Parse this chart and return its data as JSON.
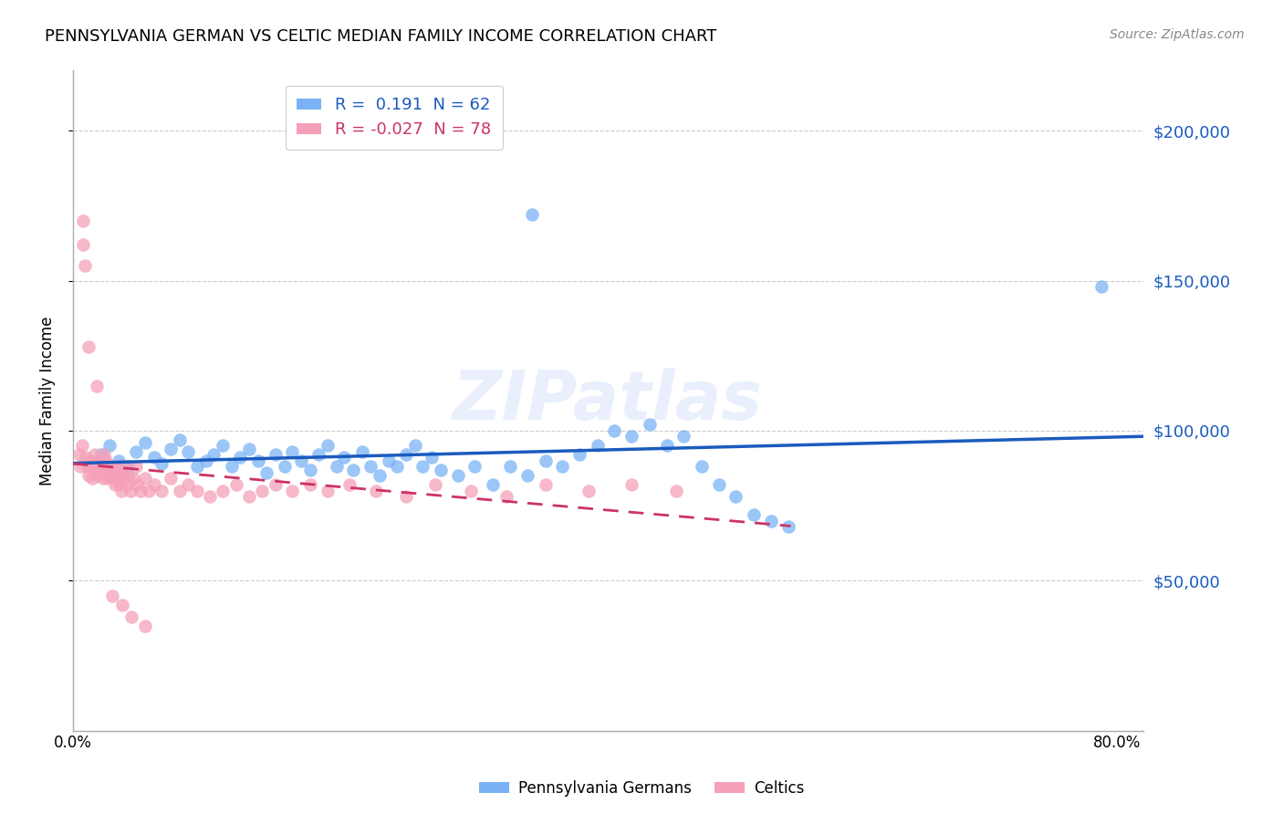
{
  "title": "PENNSYLVANIA GERMAN VS CELTIC MEDIAN FAMILY INCOME CORRELATION CHART",
  "source": "Source: ZipAtlas.com",
  "ylabel": "Median Family Income",
  "ytick_labels": [
    "$50,000",
    "$100,000",
    "$150,000",
    "$200,000"
  ],
  "ytick_values": [
    50000,
    100000,
    150000,
    200000
  ],
  "ylim": [
    0,
    220000
  ],
  "xlim": [
    0,
    0.82
  ],
  "xtick_left": "0.0%",
  "xtick_right": "80.0%",
  "legend_blue_r": "0.191",
  "legend_blue_n": "62",
  "legend_pink_r": "-0.027",
  "legend_pink_n": "78",
  "blue_color": "#7ab3f5",
  "pink_color": "#f5a0b8",
  "line_blue_color": "#1a5bbf",
  "line_pink_color": "#cc3366",
  "watermark": "ZIPatlas",
  "blue_scatter_x": [
    0.022,
    0.028,
    0.035,
    0.042,
    0.048,
    0.055,
    0.062,
    0.068,
    0.075,
    0.082,
    0.088,
    0.095,
    0.102,
    0.108,
    0.115,
    0.122,
    0.128,
    0.135,
    0.142,
    0.148,
    0.155,
    0.162,
    0.168,
    0.175,
    0.182,
    0.188,
    0.195,
    0.202,
    0.208,
    0.215,
    0.222,
    0.228,
    0.235,
    0.242,
    0.248,
    0.255,
    0.262,
    0.268,
    0.275,
    0.282,
    0.295,
    0.308,
    0.322,
    0.335,
    0.348,
    0.362,
    0.375,
    0.388,
    0.402,
    0.415,
    0.428,
    0.442,
    0.455,
    0.468,
    0.482,
    0.495,
    0.508,
    0.522,
    0.535,
    0.548,
    0.788,
    0.352
  ],
  "blue_scatter_y": [
    92000,
    95000,
    90000,
    88000,
    93000,
    96000,
    91000,
    89000,
    94000,
    97000,
    93000,
    88000,
    90000,
    92000,
    95000,
    88000,
    91000,
    94000,
    90000,
    86000,
    92000,
    88000,
    93000,
    90000,
    87000,
    92000,
    95000,
    88000,
    91000,
    87000,
    93000,
    88000,
    85000,
    90000,
    88000,
    92000,
    95000,
    88000,
    91000,
    87000,
    85000,
    88000,
    82000,
    88000,
    85000,
    90000,
    88000,
    92000,
    95000,
    100000,
    98000,
    102000,
    95000,
    98000,
    88000,
    82000,
    78000,
    72000,
    70000,
    68000,
    148000,
    172000
  ],
  "pink_scatter_x": [
    0.005,
    0.006,
    0.007,
    0.008,
    0.009,
    0.01,
    0.011,
    0.012,
    0.013,
    0.014,
    0.015,
    0.016,
    0.017,
    0.018,
    0.019,
    0.02,
    0.021,
    0.022,
    0.023,
    0.024,
    0.025,
    0.026,
    0.027,
    0.028,
    0.029,
    0.03,
    0.031,
    0.032,
    0.033,
    0.034,
    0.035,
    0.036,
    0.037,
    0.038,
    0.039,
    0.04,
    0.041,
    0.042,
    0.044,
    0.046,
    0.048,
    0.05,
    0.052,
    0.055,
    0.058,
    0.062,
    0.068,
    0.075,
    0.082,
    0.088,
    0.095,
    0.105,
    0.115,
    0.125,
    0.135,
    0.145,
    0.155,
    0.168,
    0.182,
    0.195,
    0.212,
    0.232,
    0.255,
    0.278,
    0.305,
    0.332,
    0.362,
    0.395,
    0.428,
    0.462,
    0.008,
    0.012,
    0.018,
    0.024,
    0.03,
    0.038,
    0.045,
    0.055
  ],
  "pink_scatter_y": [
    92000,
    88000,
    95000,
    162000,
    155000,
    91000,
    88000,
    85000,
    90000,
    88000,
    84000,
    88000,
    92000,
    88000,
    85000,
    90000,
    88000,
    86000,
    84000,
    88000,
    90000,
    86000,
    84000,
    88000,
    85000,
    88000,
    84000,
    82000,
    86000,
    84000,
    88000,
    82000,
    80000,
    85000,
    84000,
    88000,
    82000,
    85000,
    80000,
    84000,
    88000,
    82000,
    80000,
    84000,
    80000,
    82000,
    80000,
    84000,
    80000,
    82000,
    80000,
    78000,
    80000,
    82000,
    78000,
    80000,
    82000,
    80000,
    82000,
    80000,
    82000,
    80000,
    78000,
    82000,
    80000,
    78000,
    82000,
    80000,
    82000,
    80000,
    170000,
    128000,
    115000,
    92000,
    45000,
    42000,
    38000,
    35000
  ]
}
